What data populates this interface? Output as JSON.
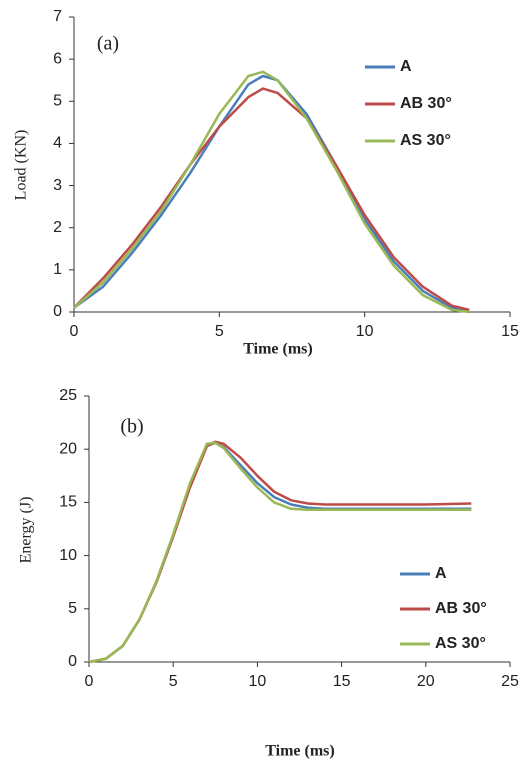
{
  "chart_data": [
    {
      "type": "line",
      "annotation": "(a)",
      "xlabel": "Time (ms)",
      "ylabel": "Load (KN)",
      "x": [
        0,
        1,
        2,
        3,
        4,
        5,
        6,
        6.5,
        7,
        8,
        9,
        10,
        11,
        12,
        13,
        13.6
      ],
      "series": [
        {
          "name": "A",
          "color": "#4a7ebb",
          "values": [
            0.1,
            0.6,
            1.4,
            2.3,
            3.3,
            4.4,
            5.4,
            5.6,
            5.5,
            4.7,
            3.5,
            2.2,
            1.2,
            0.5,
            0.1,
            0
          ]
        },
        {
          "name": "AB 30°",
          "color": "#be4b48",
          "values": [
            0.1,
            0.8,
            1.6,
            2.5,
            3.5,
            4.4,
            5.1,
            5.3,
            5.2,
            4.6,
            3.5,
            2.3,
            1.3,
            0.6,
            0.15,
            0.05
          ]
        },
        {
          "name": "AS 30°",
          "color": "#98b954",
          "values": [
            0.1,
            0.7,
            1.5,
            2.4,
            3.5,
            4.7,
            5.6,
            5.7,
            5.5,
            4.6,
            3.4,
            2.1,
            1.1,
            0.4,
            0.05,
            0
          ]
        }
      ],
      "xlim": [
        0,
        15
      ],
      "xticks": [
        0,
        5,
        10,
        15
      ],
      "ylim": [
        0,
        7
      ],
      "yticks": [
        0,
        1,
        2,
        3,
        4,
        5,
        6,
        7
      ],
      "grid": false,
      "legend": "right"
    },
    {
      "type": "line",
      "annotation": "(b)",
      "xlabel": "Time (ms)",
      "ylabel": "Energy (J)",
      "x": [
        0,
        1,
        2,
        3,
        4,
        5,
        6,
        7,
        7.5,
        8,
        9,
        10,
        11,
        12,
        13,
        14,
        16,
        18,
        20,
        22.7
      ],
      "series": [
        {
          "name": "A",
          "color": "#4a7ebb",
          "values": [
            0,
            0.3,
            1.5,
            4,
            7.5,
            11.8,
            16.5,
            20.3,
            20.6,
            20.2,
            18.5,
            16.8,
            15.5,
            14.8,
            14.5,
            14.4,
            14.4,
            14.4,
            14.4,
            14.4
          ]
        },
        {
          "name": "AB 30°",
          "color": "#be4b48",
          "values": [
            0,
            0.3,
            1.5,
            4,
            7.5,
            11.8,
            16.4,
            20.3,
            20.7,
            20.5,
            19.2,
            17.5,
            16,
            15.2,
            14.9,
            14.8,
            14.8,
            14.8,
            14.8,
            14.9
          ]
        },
        {
          "name": "AS 30°",
          "color": "#98b954",
          "values": [
            0,
            0.3,
            1.5,
            4,
            7.6,
            12,
            16.8,
            20.5,
            20.6,
            20.1,
            18.2,
            16.4,
            15,
            14.4,
            14.3,
            14.3,
            14.3,
            14.3,
            14.3,
            14.3
          ]
        }
      ],
      "xlim": [
        0,
        25
      ],
      "xticks": [
        0,
        5,
        10,
        15,
        20,
        25
      ],
      "ylim": [
        0,
        25
      ],
      "yticks": [
        0,
        5,
        10,
        15,
        20,
        25
      ],
      "grid": false,
      "legend": "right"
    }
  ]
}
